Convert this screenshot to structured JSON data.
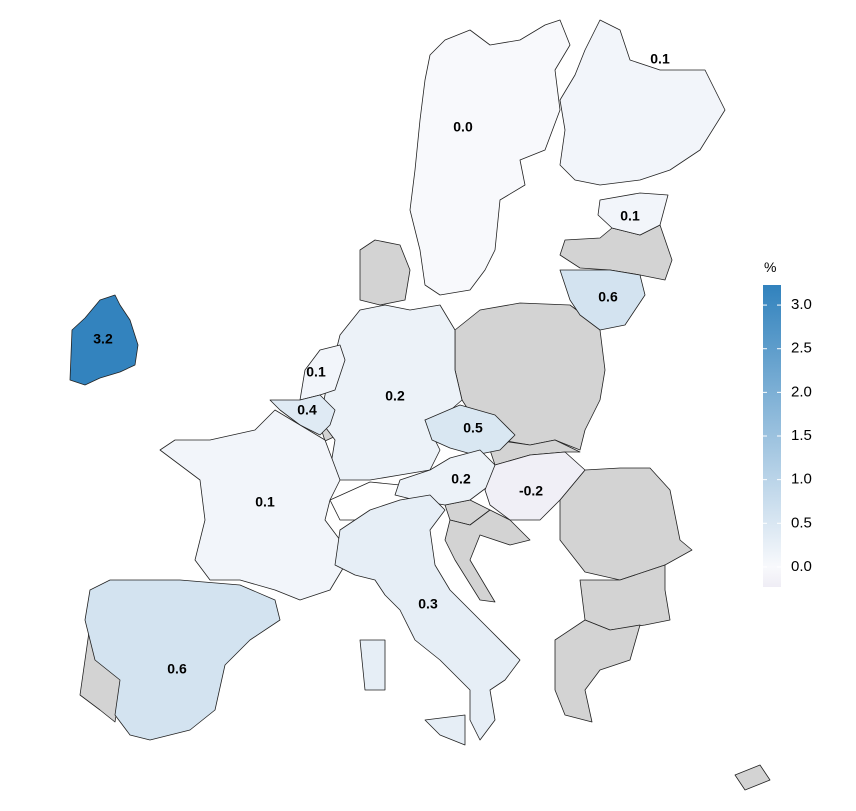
{
  "chart_data": {
    "type": "choropleth",
    "legend": {
      "title": "%",
      "ticks": [
        "0.0",
        "0.5",
        "1.0",
        "1.5",
        "2.0",
        "2.5",
        "3.0"
      ],
      "range": [
        -0.23,
        3.23
      ],
      "placement": "right"
    },
    "colors": {
      "low": "#efedf5",
      "zero": "#f8f9fc",
      "high": "#3182bd",
      "no_data": "#d3d3d3"
    },
    "regions": [
      {
        "name": "Ireland",
        "value": 3.2,
        "label": "3.2"
      },
      {
        "name": "Sweden",
        "value": 0.0,
        "label": "0.0"
      },
      {
        "name": "Finland",
        "value": 0.1,
        "label": "0.1"
      },
      {
        "name": "Estonia",
        "value": 0.1,
        "label": "0.1"
      },
      {
        "name": "Lithuania",
        "value": 0.6,
        "label": "0.6"
      },
      {
        "name": "Germany",
        "value": 0.2,
        "label": "0.2"
      },
      {
        "name": "Netherlands",
        "value": 0.1,
        "label": "0.1"
      },
      {
        "name": "Belgium",
        "value": 0.4,
        "label": "0.4"
      },
      {
        "name": "Czechia",
        "value": 0.5,
        "label": "0.5"
      },
      {
        "name": "Austria",
        "value": 0.2,
        "label": "0.2"
      },
      {
        "name": "Hungary",
        "value": -0.2,
        "label": "-0.2"
      },
      {
        "name": "France",
        "value": 0.1,
        "label": "0.1"
      },
      {
        "name": "Italy",
        "value": 0.3,
        "label": "0.3"
      },
      {
        "name": "Spain",
        "value": 0.6,
        "label": "0.6"
      }
    ]
  }
}
